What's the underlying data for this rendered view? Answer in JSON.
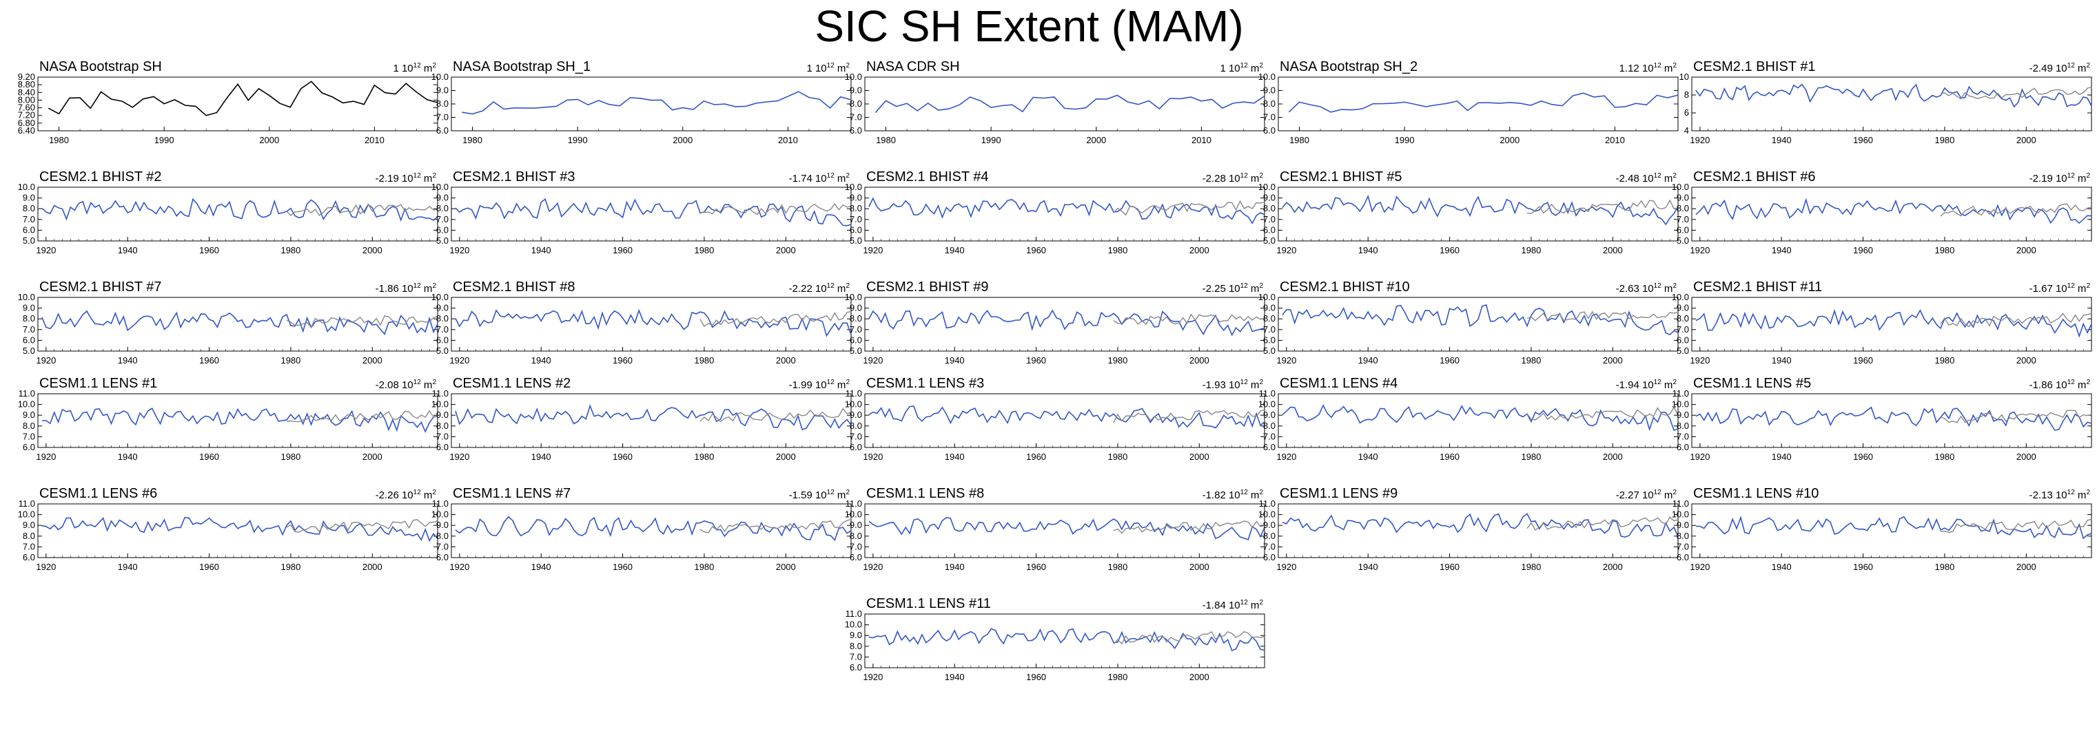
{
  "title": "SIC SH Extent (MAM)",
  "colors": {
    "observed": "#000000",
    "model": "#3355cc",
    "overlay": "#888888"
  },
  "chart_data": [
    {
      "type": "line",
      "title": "NASA Bootstrap SH",
      "trend": "1",
      "unit": "10",
      "unit_exp": "12",
      "unit_suffix": " m",
      "unit_suffix_exp": "2",
      "xlim": [
        1978,
        2016
      ],
      "xticks": [
        "1980",
        "1990",
        "2000",
        "2010"
      ],
      "ylim": [
        6.4,
        9.2
      ],
      "yticks": [
        "6.40",
        "6.80",
        "7.20",
        "7.60",
        "8.00",
        "8.40",
        "8.80",
        "9.20"
      ],
      "style": "observed",
      "seed": 1,
      "base": 7.7,
      "amp": 0.8,
      "trend_slope": 0.02
    },
    {
      "type": "line",
      "title": "NASA Bootstrap SH_1",
      "trend": "1",
      "unit": "10",
      "unit_exp": "12",
      "unit_suffix": " m",
      "unit_suffix_exp": "2",
      "xlim": [
        1978,
        2016
      ],
      "xticks": [
        "1980",
        "1990",
        "2000",
        "2010"
      ],
      "ylim": [
        6.0,
        10.0
      ],
      "yticks": [
        "6.0",
        "7.0",
        "8.0",
        "9.0",
        "10.0"
      ],
      "style": "model",
      "seed": 2,
      "base": 7.7,
      "amp": 0.7,
      "trend_slope": 0.02
    },
    {
      "type": "line",
      "title": "NASA CDR SH",
      "trend": "1",
      "unit": "10",
      "unit_exp": "12",
      "unit_suffix": " m",
      "unit_suffix_exp": "2",
      "xlim": [
        1978,
        2016
      ],
      "xticks": [
        "1980",
        "1990",
        "2000",
        "2010"
      ],
      "ylim": [
        6.0,
        10.0
      ],
      "yticks": [
        "6.0",
        "7.0",
        "8.0",
        "9.0",
        "10.0"
      ],
      "style": "model",
      "seed": 3,
      "base": 7.7,
      "amp": 0.7,
      "trend_slope": 0.02
    },
    {
      "type": "line",
      "title": "NASA Bootstrap SH_2",
      "trend": "1.12",
      "unit": "10",
      "unit_exp": "12",
      "unit_suffix": " m",
      "unit_suffix_exp": "2",
      "xlim": [
        1978,
        2016
      ],
      "xticks": [
        "1980",
        "1990",
        "2000",
        "2010"
      ],
      "ylim": [
        6.0,
        10.0
      ],
      "yticks": [
        "6.0",
        "7.0",
        "8.0",
        "9.0",
        "10.0"
      ],
      "style": "model",
      "seed": 4,
      "base": 7.7,
      "amp": 0.7,
      "trend_slope": 0.02
    },
    {
      "type": "line",
      "title": "CESM2.1 BHIST #1",
      "trend": "-2.49",
      "unit": "10",
      "unit_exp": "12",
      "unit_suffix": " m",
      "unit_suffix_exp": "2",
      "xlim": [
        1918,
        2016
      ],
      "xticks": [
        "1920",
        "1940",
        "1960",
        "1980",
        "2000"
      ],
      "ylim": [
        4,
        10
      ],
      "yticks": [
        "4",
        "6",
        "8",
        "10"
      ],
      "style": "model-overlay",
      "seed": 5,
      "base": 8.2,
      "amp": 1.2,
      "trend_slope": -0.025
    },
    {
      "type": "line",
      "title": "CESM2.1 BHIST #2",
      "trend": "-2.19",
      "unit": "10",
      "unit_exp": "12",
      "unit_suffix": " m",
      "unit_suffix_exp": "2",
      "xlim": [
        1918,
        2016
      ],
      "xticks": [
        "1920",
        "1940",
        "1960",
        "1980",
        "2000"
      ],
      "ylim": [
        5.0,
        10.0
      ],
      "yticks": [
        "5.0",
        "6.0",
        "7.0",
        "8.0",
        "9.0",
        "10.0"
      ],
      "style": "model-overlay",
      "seed": 6,
      "base": 8.0,
      "amp": 1.0,
      "trend_slope": -0.02
    },
    {
      "type": "line",
      "title": "CESM2.1 BHIST #3",
      "trend": "-1.74",
      "unit": "10",
      "unit_exp": "12",
      "unit_suffix": " m",
      "unit_suffix_exp": "2",
      "xlim": [
        1918,
        2016
      ],
      "xticks": [
        "1920",
        "1940",
        "1960",
        "1980",
        "2000"
      ],
      "ylim": [
        5.0,
        10.0
      ],
      "yticks": [
        "5.0",
        "6.0",
        "7.0",
        "8.0",
        "9.0",
        "10.0"
      ],
      "style": "model-overlay",
      "seed": 7,
      "base": 8.0,
      "amp": 1.0,
      "trend_slope": -0.02
    },
    {
      "type": "line",
      "title": "CESM2.1 BHIST #4",
      "trend": "-2.28",
      "unit": "10",
      "unit_exp": "12",
      "unit_suffix": " m",
      "unit_suffix_exp": "2",
      "xlim": [
        1918,
        2016
      ],
      "xticks": [
        "1920",
        "1940",
        "1960",
        "1980",
        "2000"
      ],
      "ylim": [
        5.0,
        10.0
      ],
      "yticks": [
        "5.0",
        "6.0",
        "7.0",
        "8.0",
        "9.0",
        "10.0"
      ],
      "style": "model-overlay",
      "seed": 8,
      "base": 8.1,
      "amp": 1.0,
      "trend_slope": -0.022
    },
    {
      "type": "line",
      "title": "CESM2.1 BHIST #5",
      "trend": "-2.48",
      "unit": "10",
      "unit_exp": "12",
      "unit_suffix": " m",
      "unit_suffix_exp": "2",
      "xlim": [
        1918,
        2016
      ],
      "xticks": [
        "1920",
        "1940",
        "1960",
        "1980",
        "2000"
      ],
      "ylim": [
        5.0,
        10.0
      ],
      "yticks": [
        "5.0",
        "6.0",
        "7.0",
        "8.0",
        "9.0",
        "10.0"
      ],
      "style": "model-overlay",
      "seed": 9,
      "base": 8.2,
      "amp": 1.0,
      "trend_slope": -0.025
    },
    {
      "type": "line",
      "title": "CESM2.1 BHIST #6",
      "trend": "-2.19",
      "unit": "10",
      "unit_exp": "12",
      "unit_suffix": " m",
      "unit_suffix_exp": "2",
      "xlim": [
        1918,
        2016
      ],
      "xticks": [
        "1920",
        "1940",
        "1960",
        "1980",
        "2000"
      ],
      "ylim": [
        5.0,
        10.0
      ],
      "yticks": [
        "5.0",
        "6.0",
        "7.0",
        "8.0",
        "9.0",
        "10.0"
      ],
      "style": "model-overlay",
      "seed": 10,
      "base": 8.0,
      "amp": 1.0,
      "trend_slope": -0.02
    },
    {
      "type": "line",
      "title": "CESM2.1 BHIST #7",
      "trend": "-1.86",
      "unit": "10",
      "unit_exp": "12",
      "unit_suffix": " m",
      "unit_suffix_exp": "2",
      "xlim": [
        1918,
        2016
      ],
      "xticks": [
        "1920",
        "1940",
        "1960",
        "1980",
        "2000"
      ],
      "ylim": [
        5.0,
        10.0
      ],
      "yticks": [
        "5.0",
        "6.0",
        "7.0",
        "8.0",
        "9.0",
        "10.0"
      ],
      "style": "model-overlay",
      "seed": 11,
      "base": 7.8,
      "amp": 1.0,
      "trend_slope": -0.018
    },
    {
      "type": "line",
      "title": "CESM2.1 BHIST #8",
      "trend": "-2.22",
      "unit": "10",
      "unit_exp": "12",
      "unit_suffix": " m",
      "unit_suffix_exp": "2",
      "xlim": [
        1918,
        2016
      ],
      "xticks": [
        "1920",
        "1940",
        "1960",
        "1980",
        "2000"
      ],
      "ylim": [
        5.0,
        10.0
      ],
      "yticks": [
        "5.0",
        "6.0",
        "7.0",
        "8.0",
        "9.0",
        "10.0"
      ],
      "style": "model-overlay",
      "seed": 12,
      "base": 8.0,
      "amp": 1.0,
      "trend_slope": -0.022
    },
    {
      "type": "line",
      "title": "CESM2.1 BHIST #9",
      "trend": "-2.25",
      "unit": "10",
      "unit_exp": "12",
      "unit_suffix": " m",
      "unit_suffix_exp": "2",
      "xlim": [
        1918,
        2016
      ],
      "xticks": [
        "1920",
        "1940",
        "1960",
        "1980",
        "2000"
      ],
      "ylim": [
        5.0,
        10.0
      ],
      "yticks": [
        "5.0",
        "6.0",
        "7.0",
        "8.0",
        "9.0",
        "10.0"
      ],
      "style": "model-overlay",
      "seed": 13,
      "base": 8.0,
      "amp": 1.0,
      "trend_slope": -0.022
    },
    {
      "type": "line",
      "title": "CESM2.1 BHIST #10",
      "trend": "-2.63",
      "unit": "10",
      "unit_exp": "12",
      "unit_suffix": " m",
      "unit_suffix_exp": "2",
      "xlim": [
        1918,
        2016
      ],
      "xticks": [
        "1920",
        "1940",
        "1960",
        "1980",
        "2000"
      ],
      "ylim": [
        5.0,
        10.0
      ],
      "yticks": [
        "5.0",
        "6.0",
        "7.0",
        "8.0",
        "9.0",
        "10.0"
      ],
      "style": "model-overlay",
      "seed": 14,
      "base": 8.3,
      "amp": 1.0,
      "trend_slope": -0.026
    },
    {
      "type": "line",
      "title": "CESM2.1 BHIST #11",
      "trend": "-1.67",
      "unit": "10",
      "unit_exp": "12",
      "unit_suffix": " m",
      "unit_suffix_exp": "2",
      "xlim": [
        1918,
        2016
      ],
      "xticks": [
        "1920",
        "1940",
        "1960",
        "1980",
        "2000"
      ],
      "ylim": [
        5.0,
        10.0
      ],
      "yticks": [
        "5.0",
        "6.0",
        "7.0",
        "8.0",
        "9.0",
        "10.0"
      ],
      "style": "model-overlay",
      "seed": 15,
      "base": 7.9,
      "amp": 1.0,
      "trend_slope": -0.017
    },
    {
      "type": "line",
      "title": "CESM1.1 LENS #1",
      "trend": "-2.08",
      "unit": "10",
      "unit_exp": "12",
      "unit_suffix": " m",
      "unit_suffix_exp": "2",
      "xlim": [
        1918,
        2016
      ],
      "xticks": [
        "1920",
        "1940",
        "1960",
        "1980",
        "2000"
      ],
      "ylim": [
        6.0,
        11.0
      ],
      "yticks": [
        "6.0",
        "7.0",
        "8.0",
        "9.0",
        "10.0",
        "11.0"
      ],
      "style": "model-overlay",
      "seed": 16,
      "base": 8.9,
      "amp": 0.9,
      "trend_slope": -0.02
    },
    {
      "type": "line",
      "title": "CESM1.1 LENS #2",
      "trend": "-1.99",
      "unit": "10",
      "unit_exp": "12",
      "unit_suffix": " m",
      "unit_suffix_exp": "2",
      "xlim": [
        1918,
        2016
      ],
      "xticks": [
        "1920",
        "1940",
        "1960",
        "1980",
        "2000"
      ],
      "ylim": [
        6.0,
        11.0
      ],
      "yticks": [
        "6.0",
        "7.0",
        "8.0",
        "9.0",
        "10.0",
        "11.0"
      ],
      "style": "model-overlay",
      "seed": 17,
      "base": 9.0,
      "amp": 0.9,
      "trend_slope": -0.02
    },
    {
      "type": "line",
      "title": "CESM1.1 LENS #3",
      "trend": "-1.93",
      "unit": "10",
      "unit_exp": "12",
      "unit_suffix": " m",
      "unit_suffix_exp": "2",
      "xlim": [
        1918,
        2016
      ],
      "xticks": [
        "1920",
        "1940",
        "1960",
        "1980",
        "2000"
      ],
      "ylim": [
        6.0,
        11.0
      ],
      "yticks": [
        "6.0",
        "7.0",
        "8.0",
        "9.0",
        "10.0",
        "11.0"
      ],
      "style": "model-overlay",
      "seed": 18,
      "base": 9.0,
      "amp": 0.9,
      "trend_slope": -0.02
    },
    {
      "type": "line",
      "title": "CESM1.1 LENS #4",
      "trend": "-1.94",
      "unit": "10",
      "unit_exp": "12",
      "unit_suffix": " m",
      "unit_suffix_exp": "2",
      "xlim": [
        1918,
        2016
      ],
      "xticks": [
        "1920",
        "1940",
        "1960",
        "1980",
        "2000"
      ],
      "ylim": [
        6.0,
        11.0
      ],
      "yticks": [
        "6.0",
        "7.0",
        "8.0",
        "9.0",
        "10.0",
        "11.0"
      ],
      "style": "model-overlay",
      "seed": 19,
      "base": 9.1,
      "amp": 0.9,
      "trend_slope": -0.02
    },
    {
      "type": "line",
      "title": "CESM1.1 LENS #5",
      "trend": "-1.86",
      "unit": "10",
      "unit_exp": "12",
      "unit_suffix": " m",
      "unit_suffix_exp": "2",
      "xlim": [
        1918,
        2016
      ],
      "xticks": [
        "1920",
        "1940",
        "1960",
        "1980",
        "2000"
      ],
      "ylim": [
        6.0,
        11.0
      ],
      "yticks": [
        "6.0",
        "7.0",
        "8.0",
        "9.0",
        "10.0",
        "11.0"
      ],
      "style": "model-overlay",
      "seed": 20,
      "base": 8.9,
      "amp": 0.9,
      "trend_slope": -0.019
    },
    {
      "type": "line",
      "title": "CESM1.1 LENS #6",
      "trend": "-2.26",
      "unit": "10",
      "unit_exp": "12",
      "unit_suffix": " m",
      "unit_suffix_exp": "2",
      "xlim": [
        1918,
        2016
      ],
      "xticks": [
        "1920",
        "1940",
        "1960",
        "1980",
        "2000"
      ],
      "ylim": [
        6.0,
        11.0
      ],
      "yticks": [
        "6.0",
        "7.0",
        "8.0",
        "9.0",
        "10.0",
        "11.0"
      ],
      "style": "model-overlay",
      "seed": 21,
      "base": 9.0,
      "amp": 0.9,
      "trend_slope": -0.022
    },
    {
      "type": "line",
      "title": "CESM1.1 LENS #7",
      "trend": "-1.59",
      "unit": "10",
      "unit_exp": "12",
      "unit_suffix": " m",
      "unit_suffix_exp": "2",
      "xlim": [
        1918,
        2016
      ],
      "xticks": [
        "1920",
        "1940",
        "1960",
        "1980",
        "2000"
      ],
      "ylim": [
        6.0,
        11.0
      ],
      "yticks": [
        "6.0",
        "7.0",
        "8.0",
        "9.0",
        "10.0",
        "11.0"
      ],
      "style": "model-overlay",
      "seed": 22,
      "base": 8.9,
      "amp": 0.9,
      "trend_slope": -0.016
    },
    {
      "type": "line",
      "title": "CESM1.1 LENS #8",
      "trend": "-1.82",
      "unit": "10",
      "unit_exp": "12",
      "unit_suffix": " m",
      "unit_suffix_exp": "2",
      "xlim": [
        1918,
        2016
      ],
      "xticks": [
        "1920",
        "1940",
        "1960",
        "1980",
        "2000"
      ],
      "ylim": [
        6.0,
        11.0
      ],
      "yticks": [
        "6.0",
        "7.0",
        "8.0",
        "9.0",
        "10.0",
        "11.0"
      ],
      "style": "model-overlay",
      "seed": 23,
      "base": 8.9,
      "amp": 0.9,
      "trend_slope": -0.018
    },
    {
      "type": "line",
      "title": "CESM1.1 LENS #9",
      "trend": "-2.27",
      "unit": "10",
      "unit_exp": "12",
      "unit_suffix": " m",
      "unit_suffix_exp": "2",
      "xlim": [
        1918,
        2016
      ],
      "xticks": [
        "1920",
        "1940",
        "1960",
        "1980",
        "2000"
      ],
      "ylim": [
        6.0,
        11.0
      ],
      "yticks": [
        "6.0",
        "7.0",
        "8.0",
        "9.0",
        "10.0",
        "11.0"
      ],
      "style": "model-overlay",
      "seed": 24,
      "base": 9.2,
      "amp": 0.9,
      "trend_slope": -0.023
    },
    {
      "type": "line",
      "title": "CESM1.1 LENS #10",
      "trend": "-2.13",
      "unit": "10",
      "unit_exp": "12",
      "unit_suffix": " m",
      "unit_suffix_exp": "2",
      "xlim": [
        1918,
        2016
      ],
      "xticks": [
        "1920",
        "1940",
        "1960",
        "1980",
        "2000"
      ],
      "ylim": [
        6.0,
        11.0
      ],
      "yticks": [
        "6.0",
        "7.0",
        "8.0",
        "9.0",
        "10.0",
        "11.0"
      ],
      "style": "model-overlay",
      "seed": 25,
      "base": 9.0,
      "amp": 0.9,
      "trend_slope": -0.021
    },
    {
      "type": "line",
      "title": "CESM1.1 LENS #11",
      "trend": "-1.84",
      "unit": "10",
      "unit_exp": "12",
      "unit_suffix": " m",
      "unit_suffix_exp": "2",
      "xlim": [
        1918,
        2016
      ],
      "xticks": [
        "1920",
        "1940",
        "1960",
        "1980",
        "2000"
      ],
      "ylim": [
        6.0,
        11.0
      ],
      "yticks": [
        "6.0",
        "7.0",
        "8.0",
        "9.0",
        "10.0",
        "11.0"
      ],
      "style": "model-overlay",
      "seed": 26,
      "base": 8.9,
      "amp": 0.9,
      "trend_slope": -0.018
    }
  ]
}
